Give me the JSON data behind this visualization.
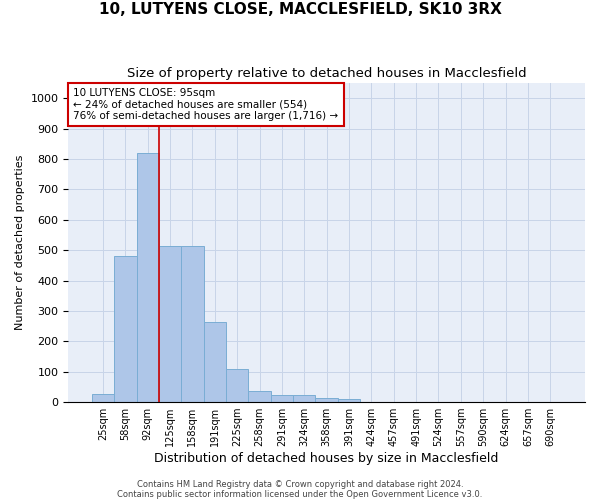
{
  "title1": "10, LUTYENS CLOSE, MACCLESFIELD, SK10 3RX",
  "title2": "Size of property relative to detached houses in Macclesfield",
  "xlabel": "Distribution of detached houses by size in Macclesfield",
  "ylabel": "Number of detached properties",
  "categories": [
    "25sqm",
    "58sqm",
    "92sqm",
    "125sqm",
    "158sqm",
    "191sqm",
    "225sqm",
    "258sqm",
    "291sqm",
    "324sqm",
    "358sqm",
    "391sqm",
    "424sqm",
    "457sqm",
    "491sqm",
    "524sqm",
    "557sqm",
    "590sqm",
    "624sqm",
    "657sqm",
    "690sqm"
  ],
  "values": [
    28,
    480,
    820,
    515,
    515,
    265,
    110,
    38,
    22,
    22,
    12,
    10,
    0,
    0,
    0,
    0,
    0,
    0,
    0,
    0,
    0
  ],
  "bar_color": "#aec6e8",
  "bar_edgecolor": "#7aadd4",
  "bar_linewidth": 0.7,
  "vline_x_index": 2,
  "vline_color": "#cc0000",
  "vline_linewidth": 1.2,
  "annotation_text": "10 LUTYENS CLOSE: 95sqm\n← 24% of detached houses are smaller (554)\n76% of semi-detached houses are larger (1,716) →",
  "annotation_box_edgecolor": "#cc0000",
  "annotation_box_facecolor": "white",
  "annotation_fontsize": 7.5,
  "ylim": [
    0,
    1050
  ],
  "yticks": [
    0,
    100,
    200,
    300,
    400,
    500,
    600,
    700,
    800,
    900,
    1000
  ],
  "grid_color": "#c8d4e8",
  "bg_color": "#e8eef8",
  "footer_line1": "Contains HM Land Registry data © Crown copyright and database right 2024.",
  "footer_line2": "Contains public sector information licensed under the Open Government Licence v3.0.",
  "title1_fontsize": 11,
  "title2_fontsize": 9.5,
  "xlabel_fontsize": 9,
  "ylabel_fontsize": 8,
  "ytick_fontsize": 8,
  "xtick_fontsize": 7,
  "footer_fontsize": 6
}
